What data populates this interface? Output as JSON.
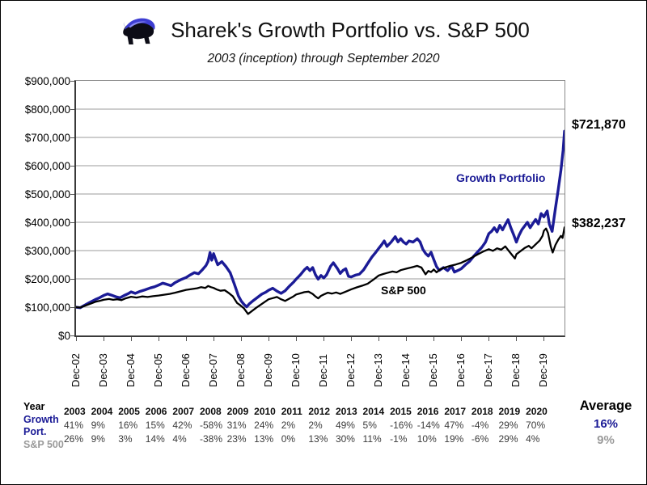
{
  "header": {
    "title": "Sharek's Growth Portfolio vs. S&P 500",
    "subtitle": "2003 (inception) through September 2020",
    "logo": "buffalo-logo"
  },
  "colors": {
    "growth_navy": "#1b1b96",
    "sp_black": "#000000",
    "muted_gray": "#9a9a9a",
    "gridline": "#9b9b9b"
  },
  "chart_data": {
    "type": "line",
    "title": "Sharek's Growth Portfolio vs. S&P 500",
    "subtitle": "2003 (inception) through September 2020",
    "ylim": [
      0,
      900000
    ],
    "x_range_years_after_dec_2002": [
      0,
      17.75
    ],
    "grid": "horizontal-only",
    "y_ticks": [
      "$900,000",
      "$800,000",
      "$700,000",
      "$600,000",
      "$500,000",
      "$400,000",
      "$300,000",
      "$200,000",
      "$100,000",
      "$0"
    ],
    "x_ticks": [
      "Dec-02",
      "Dec-03",
      "Dec-04",
      "Dec-05",
      "Dec-06",
      "Dec-07",
      "Dec-08",
      "Dec-09",
      "Dec-10",
      "Dec-11",
      "Dec-12",
      "Dec-13",
      "Dec-14",
      "Dec-15",
      "Dec-16",
      "Dec-17",
      "Dec-18",
      "Dec-19"
    ],
    "point_format": "[years_after_dec_2002, value_usd_thousands]",
    "series": [
      {
        "name": "Growth Portfolio",
        "color": "#1b1b96",
        "stroke_width": 3.4,
        "end_label": "$721,870",
        "end_value": 721870,
        "points": [
          [
            0,
            100
          ],
          [
            0.15,
            98
          ],
          [
            0.3,
            106
          ],
          [
            0.5,
            117
          ],
          [
            0.7,
            127
          ],
          [
            0.85,
            133
          ],
          [
            1,
            141
          ],
          [
            1.15,
            147
          ],
          [
            1.3,
            142
          ],
          [
            1.45,
            137
          ],
          [
            1.6,
            133
          ],
          [
            1.75,
            141
          ],
          [
            1.9,
            148
          ],
          [
            2,
            154
          ],
          [
            2.15,
            149
          ],
          [
            2.3,
            155
          ],
          [
            2.5,
            161
          ],
          [
            2.7,
            168
          ],
          [
            2.85,
            172
          ],
          [
            3,
            178
          ],
          [
            3.15,
            185
          ],
          [
            3.3,
            181
          ],
          [
            3.45,
            176
          ],
          [
            3.6,
            187
          ],
          [
            3.8,
            197
          ],
          [
            4,
            205
          ],
          [
            4.15,
            214
          ],
          [
            4.3,
            222
          ],
          [
            4.45,
            218
          ],
          [
            4.6,
            233
          ],
          [
            4.72,
            247
          ],
          [
            4.8,
            262
          ],
          [
            4.87,
            293
          ],
          [
            4.93,
            266
          ],
          [
            5,
            289
          ],
          [
            5.07,
            270
          ],
          [
            5.15,
            250
          ],
          [
            5.3,
            261
          ],
          [
            5.45,
            243
          ],
          [
            5.6,
            222
          ],
          [
            5.75,
            182
          ],
          [
            5.9,
            140
          ],
          [
            6,
            122
          ],
          [
            6.1,
            110
          ],
          [
            6.2,
            101
          ],
          [
            6.3,
            112
          ],
          [
            6.45,
            124
          ],
          [
            6.6,
            135
          ],
          [
            6.75,
            146
          ],
          [
            6.9,
            153
          ],
          [
            7,
            160
          ],
          [
            7.15,
            167
          ],
          [
            7.3,
            157
          ],
          [
            7.45,
            149
          ],
          [
            7.6,
            158
          ],
          [
            7.75,
            174
          ],
          [
            7.9,
            188
          ],
          [
            8,
            199
          ],
          [
            8.15,
            214
          ],
          [
            8.3,
            232
          ],
          [
            8.4,
            241
          ],
          [
            8.5,
            229
          ],
          [
            8.6,
            240
          ],
          [
            8.7,
            215
          ],
          [
            8.8,
            199
          ],
          [
            8.9,
            212
          ],
          [
            9,
            203
          ],
          [
            9.1,
            214
          ],
          [
            9.25,
            245
          ],
          [
            9.35,
            257
          ],
          [
            9.5,
            236
          ],
          [
            9.6,
            219
          ],
          [
            9.7,
            230
          ],
          [
            9.8,
            236
          ],
          [
            9.9,
            209
          ],
          [
            10,
            207
          ],
          [
            10.15,
            213
          ],
          [
            10.3,
            217
          ],
          [
            10.45,
            232
          ],
          [
            10.6,
            255
          ],
          [
            10.75,
            277
          ],
          [
            10.9,
            295
          ],
          [
            11,
            308
          ],
          [
            11.1,
            320
          ],
          [
            11.2,
            334
          ],
          [
            11.3,
            315
          ],
          [
            11.45,
            330
          ],
          [
            11.6,
            349
          ],
          [
            11.7,
            331
          ],
          [
            11.8,
            342
          ],
          [
            11.9,
            330
          ],
          [
            12,
            323
          ],
          [
            12.1,
            334
          ],
          [
            12.25,
            330
          ],
          [
            12.4,
            342
          ],
          [
            12.5,
            331
          ],
          [
            12.6,
            305
          ],
          [
            12.7,
            290
          ],
          [
            12.8,
            281
          ],
          [
            12.9,
            294
          ],
          [
            13,
            268
          ],
          [
            13.1,
            243
          ],
          [
            13.2,
            230
          ],
          [
            13.35,
            240
          ],
          [
            13.5,
            229
          ],
          [
            13.65,
            245
          ],
          [
            13.75,
            224
          ],
          [
            13.9,
            231
          ],
          [
            14,
            236
          ],
          [
            14.15,
            250
          ],
          [
            14.3,
            262
          ],
          [
            14.45,
            280
          ],
          [
            14.6,
            296
          ],
          [
            14.75,
            312
          ],
          [
            14.88,
            330
          ],
          [
            15,
            360
          ],
          [
            15.1,
            368
          ],
          [
            15.2,
            381
          ],
          [
            15.3,
            366
          ],
          [
            15.4,
            389
          ],
          [
            15.5,
            373
          ],
          [
            15.6,
            392
          ],
          [
            15.7,
            409
          ],
          [
            15.8,
            381
          ],
          [
            15.9,
            357
          ],
          [
            16,
            330
          ],
          [
            16.1,
            355
          ],
          [
            16.2,
            374
          ],
          [
            16.3,
            387
          ],
          [
            16.4,
            400
          ],
          [
            16.5,
            381
          ],
          [
            16.6,
            396
          ],
          [
            16.7,
            410
          ],
          [
            16.8,
            394
          ],
          [
            16.9,
            431
          ],
          [
            17,
            419
          ],
          [
            17.07,
            432
          ],
          [
            17.12,
            440
          ],
          [
            17.2,
            393
          ],
          [
            17.3,
            368
          ],
          [
            17.42,
            450
          ],
          [
            17.52,
            515
          ],
          [
            17.62,
            585
          ],
          [
            17.7,
            655
          ],
          [
            17.75,
            722
          ]
        ]
      },
      {
        "name": "S&P 500",
        "color": "#000000",
        "stroke_width": 2.3,
        "end_label": "$382,237",
        "end_value": 382237,
        "points": [
          [
            0,
            100
          ],
          [
            0.15,
            99
          ],
          [
            0.3,
            104
          ],
          [
            0.5,
            111
          ],
          [
            0.7,
            119
          ],
          [
            0.85,
            122
          ],
          [
            1,
            126
          ],
          [
            1.2,
            129
          ],
          [
            1.35,
            126
          ],
          [
            1.5,
            128
          ],
          [
            1.65,
            125
          ],
          [
            1.8,
            131
          ],
          [
            2,
            137
          ],
          [
            2.2,
            134
          ],
          [
            2.4,
            138
          ],
          [
            2.6,
            136
          ],
          [
            2.8,
            139
          ],
          [
            3,
            141
          ],
          [
            3.2,
            144
          ],
          [
            3.4,
            147
          ],
          [
            3.6,
            151
          ],
          [
            3.8,
            156
          ],
          [
            4,
            161
          ],
          [
            4.2,
            164
          ],
          [
            4.4,
            167
          ],
          [
            4.55,
            171
          ],
          [
            4.7,
            168
          ],
          [
            4.8,
            175
          ],
          [
            4.9,
            171
          ],
          [
            5,
            168
          ],
          [
            5.1,
            163
          ],
          [
            5.25,
            158
          ],
          [
            5.4,
            160
          ],
          [
            5.55,
            150
          ],
          [
            5.7,
            138
          ],
          [
            5.85,
            115
          ],
          [
            5.95,
            108
          ],
          [
            6,
            104
          ],
          [
            6.1,
            96
          ],
          [
            6.25,
            76
          ],
          [
            6.4,
            87
          ],
          [
            6.55,
            98
          ],
          [
            6.7,
            108
          ],
          [
            6.85,
            118
          ],
          [
            7,
            128
          ],
          [
            7.15,
            132
          ],
          [
            7.3,
            136
          ],
          [
            7.45,
            128
          ],
          [
            7.6,
            122
          ],
          [
            7.75,
            130
          ],
          [
            7.9,
            138
          ],
          [
            8,
            145
          ],
          [
            8.15,
            149
          ],
          [
            8.3,
            153
          ],
          [
            8.45,
            155
          ],
          [
            8.6,
            147
          ],
          [
            8.7,
            138
          ],
          [
            8.8,
            131
          ],
          [
            8.9,
            140
          ],
          [
            9,
            145
          ],
          [
            9.15,
            151
          ],
          [
            9.3,
            148
          ],
          [
            9.45,
            152
          ],
          [
            9.6,
            147
          ],
          [
            9.8,
            155
          ],
          [
            10,
            163
          ],
          [
            10.2,
            170
          ],
          [
            10.4,
            176
          ],
          [
            10.6,
            183
          ],
          [
            10.8,
            197
          ],
          [
            11,
            212
          ],
          [
            11.15,
            217
          ],
          [
            11.3,
            221
          ],
          [
            11.5,
            226
          ],
          [
            11.65,
            223
          ],
          [
            11.8,
            231
          ],
          [
            12,
            236
          ],
          [
            12.2,
            241
          ],
          [
            12.4,
            246
          ],
          [
            12.55,
            240
          ],
          [
            12.7,
            216
          ],
          [
            12.8,
            228
          ],
          [
            12.9,
            224
          ],
          [
            13,
            233
          ],
          [
            13.1,
            223
          ],
          [
            13.25,
            235
          ],
          [
            13.4,
            240
          ],
          [
            13.6,
            246
          ],
          [
            13.8,
            251
          ],
          [
            14,
            257
          ],
          [
            14.2,
            266
          ],
          [
            14.4,
            276
          ],
          [
            14.6,
            287
          ],
          [
            14.8,
            297
          ],
          [
            15,
            305
          ],
          [
            15.15,
            299
          ],
          [
            15.3,
            308
          ],
          [
            15.45,
            303
          ],
          [
            15.6,
            315
          ],
          [
            15.75,
            296
          ],
          [
            15.85,
            284
          ],
          [
            15.95,
            272
          ],
          [
            16,
            287
          ],
          [
            16.15,
            298
          ],
          [
            16.3,
            309
          ],
          [
            16.45,
            317
          ],
          [
            16.55,
            308
          ],
          [
            16.7,
            322
          ],
          [
            16.85,
            336
          ],
          [
            16.95,
            352
          ],
          [
            17,
            370
          ],
          [
            17.08,
            378
          ],
          [
            17.15,
            362
          ],
          [
            17.25,
            315
          ],
          [
            17.32,
            293
          ],
          [
            17.42,
            320
          ],
          [
            17.52,
            338
          ],
          [
            17.62,
            352
          ],
          [
            17.68,
            345
          ],
          [
            17.75,
            382
          ]
        ]
      }
    ],
    "annotations": [
      {
        "text": "Growth Portfolio",
        "color": "#1b1b96"
      },
      {
        "text": "S&P 500",
        "color": "#000000"
      },
      {
        "text": "$721,870"
      },
      {
        "text": "$382,237"
      }
    ],
    "legend_position": "inline-labels"
  },
  "table": {
    "row_labels": {
      "year": "Year",
      "growth_line1": "Growth",
      "growth_line2": "Port.",
      "sp": "S&P 500"
    },
    "years": [
      "2003",
      "2004",
      "2005",
      "2006",
      "2007",
      "2008",
      "2009",
      "2010",
      "2011",
      "2012",
      "2013",
      "2014",
      "2015",
      "2016",
      "2017",
      "2018",
      "2019",
      "2020"
    ],
    "growth_returns": [
      "41%",
      "9%",
      "16%",
      "15%",
      "42%",
      "-58%",
      "31%",
      "24%",
      "2%",
      "2%",
      "49%",
      "5%",
      "-16%",
      "-14%",
      "47%",
      "-4%",
      "29%",
      "70%"
    ],
    "sp_returns": [
      "26%",
      "9%",
      "3%",
      "14%",
      "4%",
      "-38%",
      "23%",
      "13%",
      "0%",
      "13%",
      "30%",
      "11%",
      "-1%",
      "10%",
      "19%",
      "-6%",
      "29%",
      "4%"
    ],
    "average": {
      "label": "Average",
      "growth": "16%",
      "sp": "9%"
    }
  }
}
